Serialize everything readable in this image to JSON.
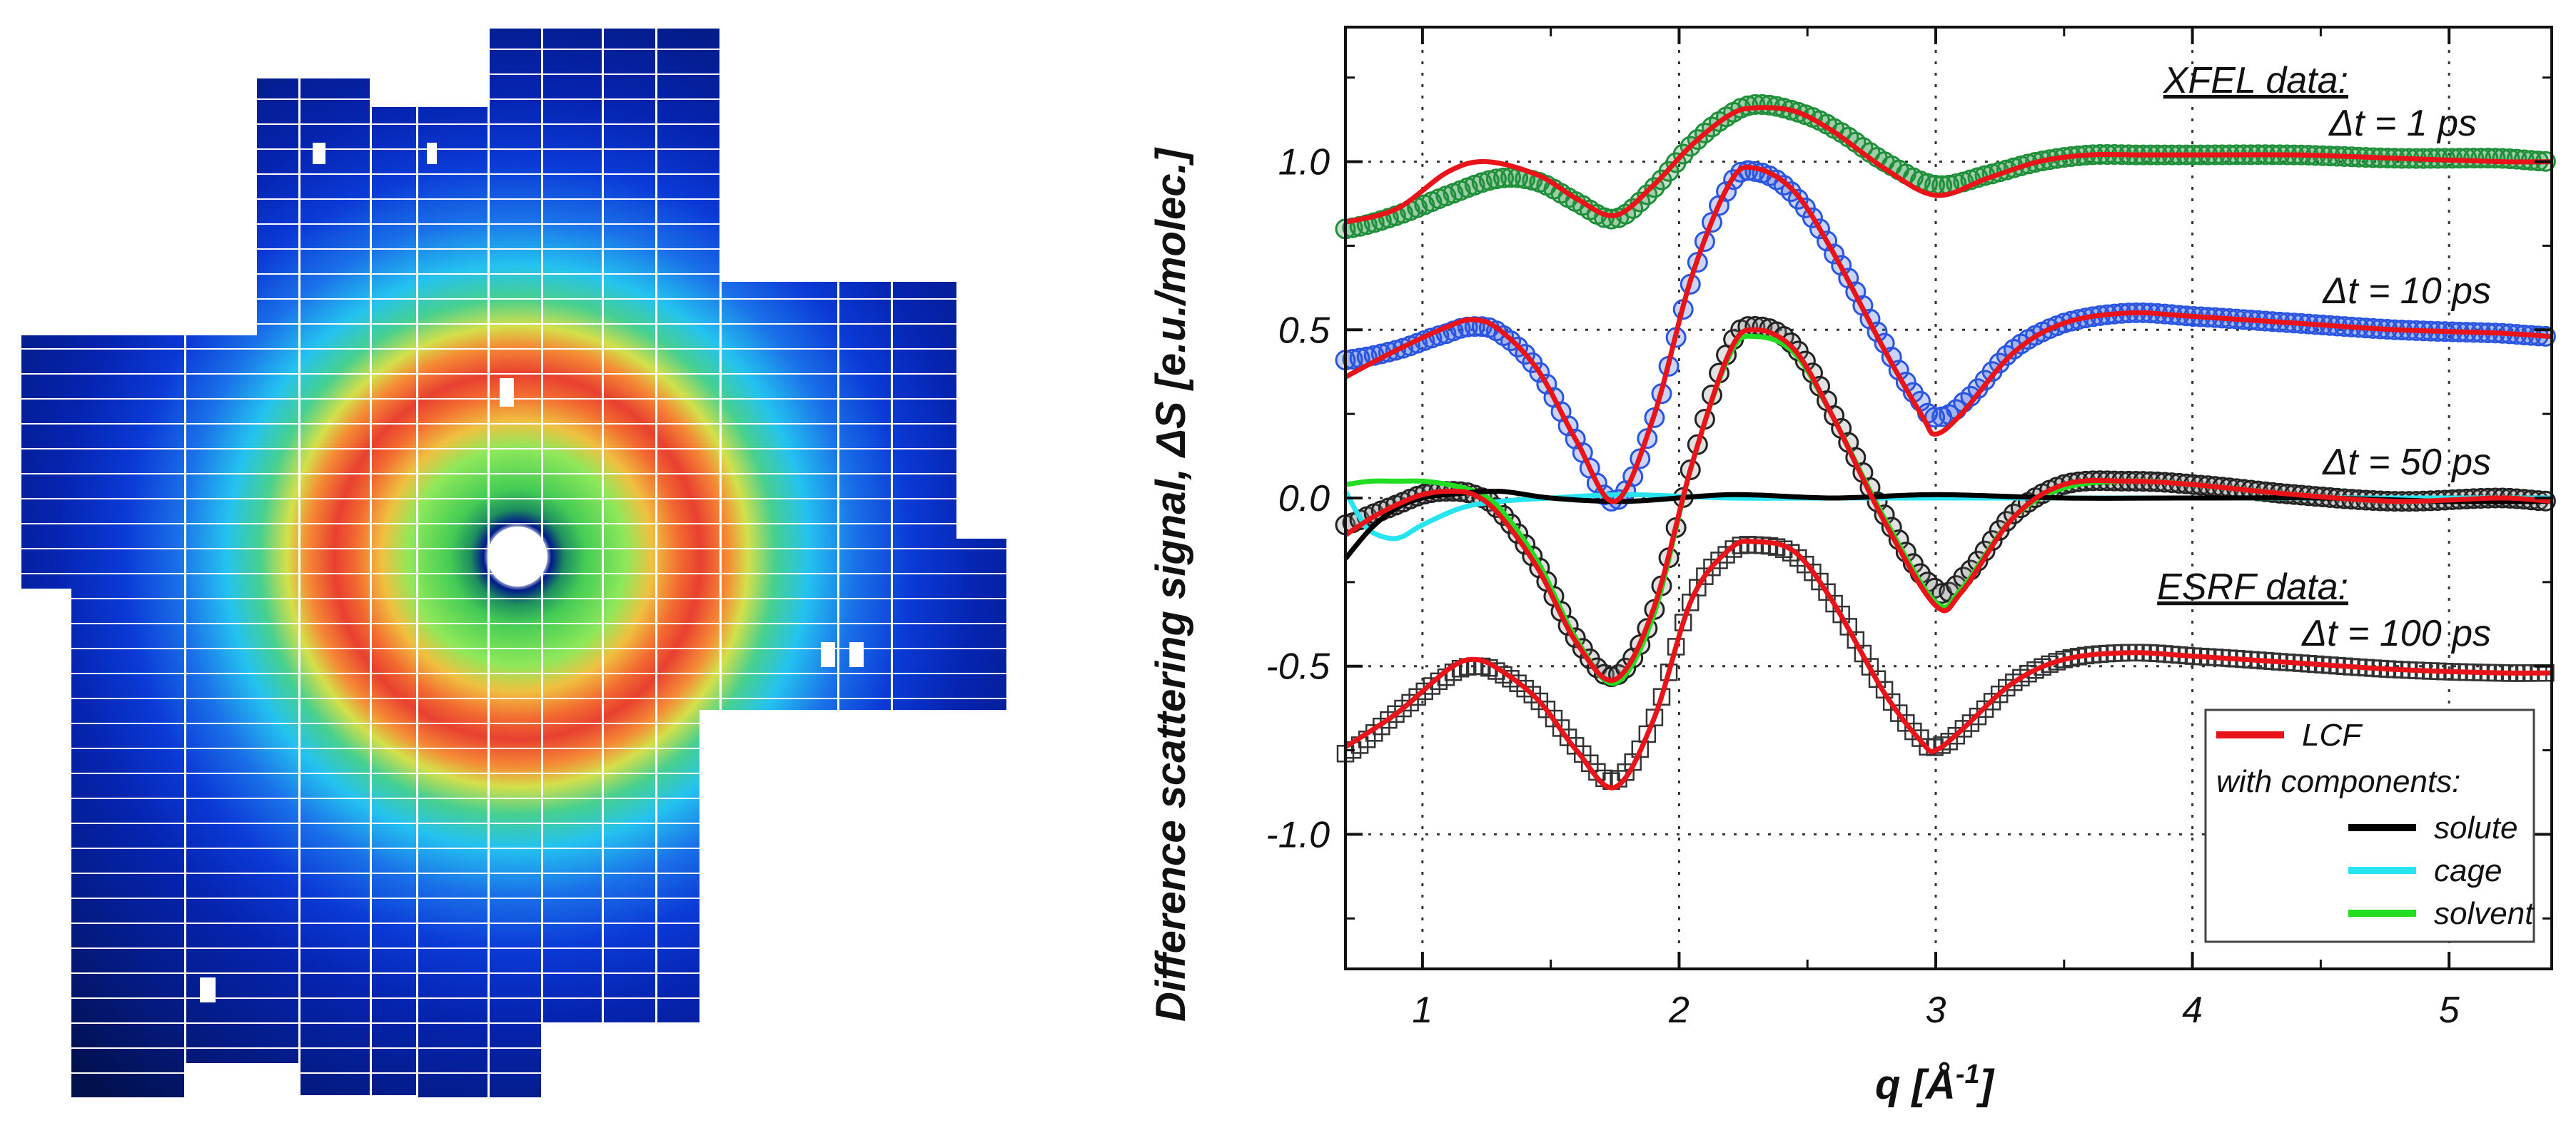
{
  "colors": {
    "xfel_1ps_marker": "#1f8f3a",
    "xfel_10ps_marker": "#2a55e0",
    "xfel_50ps_marker": "#222222",
    "esrf_marker": "#333333",
    "lcf": "#e8141a",
    "solute": "#000000",
    "cage": "#28e4f0",
    "solvent": "#22dd22"
  },
  "chart_data": {
    "type": "line",
    "title": "",
    "xlabel": "q [Å⁻¹]",
    "xlabel_main": "q [Å",
    "xlabel_sup": "-1",
    "xlabel_end": "]",
    "ylabel": "Difference scattering signal, ΔS [e.u./molec.]",
    "xlim": [
      0.7,
      5.4
    ],
    "ylim": [
      -1.4,
      1.4
    ],
    "grid": true,
    "xticks": [
      1,
      2,
      3,
      4,
      5
    ],
    "xtick_labels": [
      "1",
      "2",
      "3",
      "4",
      "5"
    ],
    "yticks": [
      1.0,
      0.5,
      0.0,
      -0.5,
      -1.0
    ],
    "ytick_labels": [
      "1.0",
      "0.5",
      "0.0",
      "-0.5",
      "-1.0"
    ],
    "annotations": {
      "xfel_header": "XFEL data:",
      "esrf_header": "ESRF data:",
      "t1": "Δt = 1 ps",
      "t10": "Δt = 10 ps",
      "t50": "Δt = 50 ps",
      "t100": "Δt = 100 ps"
    },
    "legend": {
      "position": "bottom-right",
      "lcf": "LCF",
      "with_components": "with components:",
      "solute": "solute",
      "cage": "cage",
      "solvent": "solvent"
    },
    "series": [
      {
        "name": "Δt = 1 ps data",
        "marker": "circle",
        "x": [
          0.7,
          0.9,
          1.1,
          1.3,
          1.45,
          1.6,
          1.75,
          1.9,
          2.05,
          2.2,
          2.3,
          2.45,
          2.6,
          2.8,
          3.0,
          3.2,
          3.4,
          3.6,
          3.8,
          4.0,
          4.4,
          4.8,
          5.2,
          5.4
        ],
        "y": [
          0.8,
          0.84,
          0.9,
          0.95,
          0.94,
          0.88,
          0.83,
          0.92,
          1.05,
          1.14,
          1.17,
          1.15,
          1.1,
          1.0,
          0.93,
          0.96,
          1.0,
          1.02,
          1.02,
          1.02,
          1.02,
          1.01,
          1.01,
          1.0
        ]
      },
      {
        "name": "Δt = 1 ps LCF",
        "x": [
          0.7,
          0.9,
          1.1,
          1.25,
          1.45,
          1.6,
          1.75,
          1.9,
          2.05,
          2.2,
          2.3,
          2.45,
          2.6,
          2.8,
          3.0,
          3.2,
          3.4,
          3.6,
          3.8,
          4.0,
          4.4,
          4.8,
          5.2,
          5.4
        ],
        "y": [
          0.82,
          0.86,
          0.97,
          1.0,
          0.96,
          0.89,
          0.84,
          0.93,
          1.05,
          1.14,
          1.16,
          1.15,
          1.09,
          0.98,
          0.9,
          0.95,
          1.0,
          1.02,
          1.02,
          1.02,
          1.02,
          1.01,
          1.0,
          1.0
        ]
      },
      {
        "name": "Δt = 10 ps data",
        "marker": "circle",
        "x": [
          0.7,
          0.9,
          1.1,
          1.2,
          1.3,
          1.45,
          1.6,
          1.75,
          1.9,
          2.05,
          2.2,
          2.3,
          2.45,
          2.6,
          2.8,
          2.95,
          3.0,
          3.1,
          3.3,
          3.5,
          3.75,
          4.0,
          4.4,
          4.8,
          5.2,
          5.4
        ],
        "y": [
          0.41,
          0.44,
          0.49,
          0.51,
          0.49,
          0.38,
          0.17,
          -0.01,
          0.23,
          0.65,
          0.93,
          0.97,
          0.9,
          0.73,
          0.46,
          0.28,
          0.24,
          0.28,
          0.44,
          0.52,
          0.55,
          0.54,
          0.52,
          0.5,
          0.49,
          0.48
        ]
      },
      {
        "name": "Δt = 10 ps LCF",
        "x": [
          0.7,
          0.9,
          1.1,
          1.2,
          1.3,
          1.45,
          1.6,
          1.75,
          1.9,
          2.05,
          2.2,
          2.3,
          2.45,
          2.6,
          2.8,
          2.95,
          3.0,
          3.1,
          3.3,
          3.5,
          3.75,
          4.0,
          4.4,
          4.8,
          5.2,
          5.4
        ],
        "y": [
          0.36,
          0.44,
          0.51,
          0.53,
          0.5,
          0.38,
          0.17,
          -0.01,
          0.24,
          0.66,
          0.94,
          0.98,
          0.91,
          0.73,
          0.44,
          0.24,
          0.19,
          0.25,
          0.43,
          0.52,
          0.55,
          0.54,
          0.52,
          0.5,
          0.49,
          0.48
        ]
      },
      {
        "name": "Δt = 50 ps data",
        "marker": "circle",
        "x": [
          0.7,
          0.8,
          0.9,
          1.0,
          1.1,
          1.2,
          1.3,
          1.45,
          1.6,
          1.75,
          1.9,
          2.05,
          2.2,
          2.3,
          2.45,
          2.6,
          2.8,
          3.0,
          3.1,
          3.3,
          3.5,
          3.75,
          4.0,
          4.4,
          4.8,
          5.2,
          5.4
        ],
        "y": [
          -0.08,
          -0.05,
          -0.02,
          0.01,
          0.02,
          0.01,
          -0.04,
          -0.2,
          -0.42,
          -0.53,
          -0.34,
          0.1,
          0.45,
          0.51,
          0.45,
          0.25,
          -0.05,
          -0.27,
          -0.24,
          -0.05,
          0.04,
          0.05,
          0.04,
          0.01,
          -0.01,
          0.0,
          -0.01
        ]
      },
      {
        "name": "Δt = 50 ps LCF",
        "x": [
          0.7,
          0.8,
          0.9,
          1.0,
          1.1,
          1.2,
          1.3,
          1.45,
          1.6,
          1.75,
          1.9,
          2.05,
          2.2,
          2.3,
          2.45,
          2.6,
          2.8,
          3.0,
          3.1,
          3.3,
          3.5,
          3.75,
          4.0,
          4.4,
          4.8,
          5.2,
          5.4
        ],
        "y": [
          -0.11,
          -0.06,
          -0.02,
          0.01,
          0.02,
          0.01,
          -0.05,
          -0.21,
          -0.43,
          -0.54,
          -0.33,
          0.1,
          0.44,
          0.5,
          0.44,
          0.24,
          -0.07,
          -0.32,
          -0.28,
          -0.06,
          0.04,
          0.05,
          0.04,
          0.01,
          -0.01,
          0.0,
          -0.01
        ]
      },
      {
        "name": "solute",
        "x": [
          0.7,
          0.8,
          0.9,
          1.0,
          1.1,
          1.3,
          1.5,
          1.8,
          2.2,
          2.6,
          3.0,
          3.5,
          4.0,
          4.5,
          5.0,
          5.4
        ],
        "y": [
          -0.18,
          -0.09,
          -0.03,
          0.0,
          0.01,
          0.02,
          0.0,
          -0.01,
          0.01,
          0.0,
          0.01,
          0.0,
          0.0,
          0.0,
          -0.01,
          -0.01
        ]
      },
      {
        "name": "cage",
        "x": [
          0.7,
          0.75,
          0.8,
          0.9,
          1.0,
          1.15,
          1.3,
          1.5,
          1.8,
          2.2,
          2.6,
          3.0,
          3.5,
          4.0,
          4.5,
          5.0,
          5.4
        ],
        "y": [
          0.02,
          -0.05,
          -0.1,
          -0.12,
          -0.08,
          -0.03,
          -0.01,
          0.0,
          0.01,
          0.0,
          0.0,
          0.0,
          0.0,
          0.0,
          0.0,
          0.0,
          0.0
        ]
      },
      {
        "name": "solvent",
        "x": [
          0.7,
          0.8,
          0.9,
          1.0,
          1.1,
          1.2,
          1.3,
          1.45,
          1.6,
          1.75,
          1.9,
          2.05,
          2.2,
          2.3,
          2.45,
          2.6,
          2.8,
          3.0,
          3.1,
          3.3,
          3.5,
          3.75,
          4.0,
          4.4,
          4.8,
          5.2,
          5.4
        ],
        "y": [
          0.04,
          0.05,
          0.05,
          0.05,
          0.04,
          0.02,
          -0.03,
          -0.19,
          -0.42,
          -0.55,
          -0.35,
          0.1,
          0.43,
          0.48,
          0.43,
          0.24,
          -0.06,
          -0.31,
          -0.27,
          -0.06,
          0.03,
          0.05,
          0.04,
          0.01,
          -0.01,
          0.0,
          -0.01
        ]
      },
      {
        "name": "Δt = 100 ps data",
        "marker": "square",
        "x": [
          0.7,
          0.9,
          1.1,
          1.2,
          1.3,
          1.45,
          1.6,
          1.75,
          1.9,
          2.05,
          2.2,
          2.3,
          2.45,
          2.6,
          2.8,
          2.95,
          3.0,
          3.1,
          3.3,
          3.5,
          3.75,
          4.0,
          4.4,
          4.8,
          5.2,
          5.4
        ],
        "y": [
          -0.76,
          -0.64,
          -0.53,
          -0.5,
          -0.52,
          -0.6,
          -0.74,
          -0.84,
          -0.66,
          -0.3,
          -0.16,
          -0.14,
          -0.17,
          -0.31,
          -0.57,
          -0.72,
          -0.74,
          -0.69,
          -0.55,
          -0.48,
          -0.46,
          -0.47,
          -0.49,
          -0.51,
          -0.52,
          -0.52
        ]
      },
      {
        "name": "Δt = 100 ps LCF",
        "x": [
          0.7,
          0.9,
          1.1,
          1.2,
          1.3,
          1.45,
          1.6,
          1.75,
          1.9,
          2.05,
          2.2,
          2.3,
          2.45,
          2.6,
          2.8,
          2.95,
          3.0,
          3.1,
          3.3,
          3.5,
          3.75,
          4.0,
          4.4,
          4.8,
          5.2,
          5.4
        ],
        "y": [
          -0.74,
          -0.64,
          -0.51,
          -0.48,
          -0.51,
          -0.6,
          -0.75,
          -0.86,
          -0.66,
          -0.3,
          -0.15,
          -0.13,
          -0.16,
          -0.31,
          -0.58,
          -0.73,
          -0.75,
          -0.69,
          -0.55,
          -0.48,
          -0.46,
          -0.47,
          -0.49,
          -0.51,
          -0.52,
          -0.52
        ]
      }
    ]
  }
}
